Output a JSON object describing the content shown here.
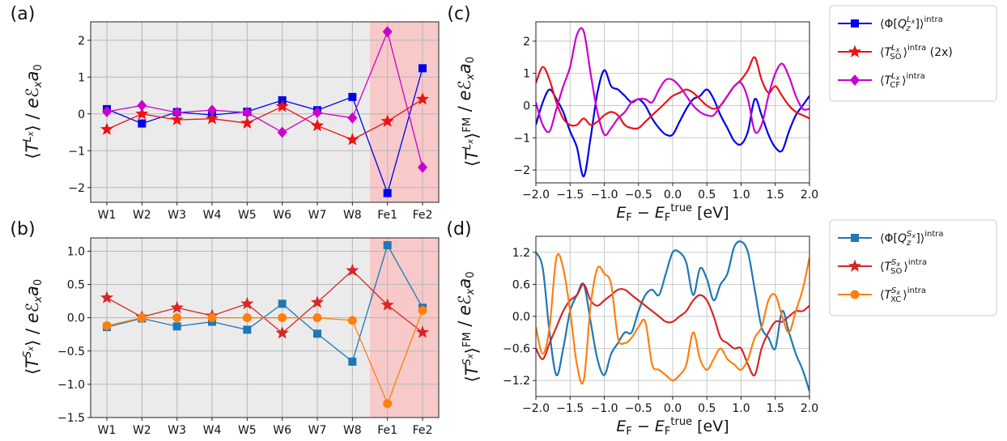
{
  "chart_data": [
    {
      "panel": "(a)",
      "type": "line",
      "categories": [
        "W1",
        "W2",
        "W3",
        "W4",
        "W5",
        "W6",
        "W7",
        "W8",
        "Fe1",
        "Fe2"
      ],
      "ylabel": "⟨T^{Lx}⟩ / eℰx a0",
      "ylim": [
        -2.4,
        2.5
      ],
      "yticks": [
        -2,
        -1,
        0,
        1,
        2
      ],
      "grid": true,
      "background": "#ebebeb",
      "highlight": {
        "from": "Fe1",
        "to": "Fe2",
        "color": "#f7c9c9"
      },
      "series": [
        {
          "color": "#0000ee",
          "marker": "square",
          "values": [
            0.13,
            -0.26,
            0.05,
            -0.03,
            0.06,
            0.37,
            0.1,
            0.46,
            -2.15,
            1.24
          ]
        },
        {
          "color": "#ee1111",
          "marker": "star",
          "values": [
            -0.42,
            0.0,
            -0.16,
            -0.13,
            -0.25,
            0.2,
            -0.32,
            -0.7,
            -0.2,
            0.4
          ]
        },
        {
          "color": "#cc00cc",
          "marker": "diamond",
          "values": [
            0.06,
            0.23,
            0.04,
            0.1,
            0.04,
            -0.5,
            0.04,
            -0.11,
            2.23,
            -1.45
          ]
        }
      ]
    },
    {
      "panel": "(b)",
      "type": "line",
      "categories": [
        "W1",
        "W2",
        "W3",
        "W4",
        "W5",
        "W6",
        "W7",
        "W8",
        "Fe1",
        "Fe2"
      ],
      "ylabel": "⟨T^{Sx}⟩ / eℰx a0",
      "ylim": [
        -1.5,
        1.2
      ],
      "yticks": [
        -1.5,
        -1.0,
        -0.5,
        0.0,
        0.5,
        1.0
      ],
      "ytick_labels": [
        "−1.5",
        "−1.0",
        "−0.5",
        "0.0",
        "0.5",
        "1.0"
      ],
      "grid": true,
      "background": "#ebebeb",
      "highlight": {
        "from": "Fe1",
        "to": "Fe2",
        "color": "#f7c9c9"
      },
      "series": [
        {
          "color": "#1f77b4",
          "marker": "square",
          "values": [
            -0.14,
            -0.01,
            -0.13,
            -0.06,
            -0.18,
            0.21,
            -0.24,
            -0.66,
            1.09,
            0.15
          ]
        },
        {
          "color": "#d62728",
          "marker": "star",
          "values": [
            0.3,
            0.01,
            0.15,
            0.03,
            0.21,
            -0.23,
            0.23,
            0.71,
            0.19,
            -0.22
          ]
        },
        {
          "color": "#ff7f0e",
          "marker": "circle",
          "values": [
            -0.12,
            0.0,
            0.0,
            0.0,
            0.0,
            0.0,
            0.0,
            -0.04,
            -1.29,
            0.11
          ]
        }
      ]
    },
    {
      "panel": "(c)",
      "type": "line",
      "xlabel": "E_F − E_F^true [eV]",
      "ylabel": "⟨T^{Lx}⟩^FM / eℰx a0",
      "xlim": [
        -2.0,
        2.0
      ],
      "ylim": [
        -2.4,
        2.6
      ],
      "xticks": [
        -2.0,
        -1.5,
        -1.0,
        -0.5,
        0.0,
        0.5,
        1.0,
        1.5,
        2.0
      ],
      "xtick_labels": [
        "−2.0",
        "−1.5",
        "−1.0",
        "−0.5",
        "0.0",
        "0.5",
        "1.0",
        "1.5",
        "2.0"
      ],
      "yticks": [
        -2,
        -1,
        0,
        1,
        2
      ],
      "ytick_labels": [
        "−2",
        "−1",
        "0",
        "1",
        "2"
      ],
      "grid": true,
      "x": [
        -2.0,
        -1.9,
        -1.8,
        -1.7,
        -1.6,
        -1.5,
        -1.4,
        -1.3,
        -1.2,
        -1.1,
        -1.0,
        -0.9,
        -0.8,
        -0.7,
        -0.6,
        -0.5,
        -0.4,
        -0.3,
        -0.2,
        -0.1,
        0.0,
        0.1,
        0.2,
        0.3,
        0.4,
        0.5,
        0.6,
        0.7,
        0.8,
        0.9,
        1.0,
        1.1,
        1.2,
        1.3,
        1.4,
        1.5,
        1.6,
        1.7,
        1.8,
        1.9,
        2.0
      ],
      "series": [
        {
          "name": "⟨Φ[Q_z^{Lx}]⟩^intra",
          "color": "#0000ee",
          "marker": "square",
          "values": [
            -0.6,
            0.1,
            0.5,
            0.2,
            -0.2,
            -0.8,
            -1.3,
            -2.2,
            -1.0,
            0.4,
            1.1,
            0.6,
            0.5,
            0.3,
            0.1,
            0.2,
            0.0,
            -0.4,
            -0.7,
            -0.9,
            -0.9,
            -0.5,
            -0.1,
            0.2,
            0.3,
            0.5,
            0.2,
            -0.3,
            -0.7,
            -1.1,
            -1.2,
            -0.8,
            0.2,
            -0.3,
            -0.9,
            -1.3,
            -1.4,
            -0.8,
            -0.3,
            0.0,
            0.3
          ]
        },
        {
          "name": "⟨T_SO^{Lx}⟩^intra",
          "label_suffix": "(2x)",
          "color": "#ee1111",
          "marker": "star",
          "values": [
            0.7,
            1.2,
            0.8,
            0.1,
            -0.4,
            -0.6,
            -0.6,
            -0.4,
            -0.6,
            -0.5,
            -0.3,
            -0.2,
            -0.3,
            -0.6,
            -0.7,
            -0.7,
            -0.5,
            -0.3,
            -0.1,
            0.1,
            0.3,
            0.4,
            0.5,
            0.4,
            0.2,
            0.0,
            -0.1,
            0.0,
            0.3,
            0.6,
            0.8,
            1.1,
            1.5,
            0.8,
            0.4,
            0.6,
            0.3,
            0.0,
            -0.2,
            -0.3,
            -0.4
          ]
        },
        {
          "name": "⟨T_CF^{Lx}⟩^intra",
          "color": "#cc00cc",
          "marker": "diamond",
          "values": [
            0.1,
            -0.6,
            -0.8,
            -0.1,
            0.6,
            1.2,
            2.2,
            2.3,
            1.0,
            -0.2,
            -0.9,
            -0.7,
            -0.4,
            -0.2,
            0.1,
            0.2,
            0.2,
            0.1,
            0.5,
            0.8,
            0.8,
            0.6,
            0.3,
            0.0,
            -0.2,
            -0.3,
            -0.3,
            0.0,
            0.3,
            0.6,
            0.7,
            0.2,
            -0.8,
            -0.6,
            0.3,
            1.0,
            1.3,
            0.9,
            0.3,
            -0.1,
            -0.1
          ]
        }
      ]
    },
    {
      "panel": "(d)",
      "type": "line",
      "xlabel": "E_F − E_F^true [eV]",
      "ylabel": "⟨T^{Sx}⟩^FM / eℰx a0",
      "xlim": [
        -2.0,
        2.0
      ],
      "ylim": [
        -1.5,
        1.5
      ],
      "xticks": [
        -2.0,
        -1.5,
        -1.0,
        -0.5,
        0.0,
        0.5,
        1.0,
        1.5,
        2.0
      ],
      "xtick_labels": [
        "−2.0",
        "−1.5",
        "−1.0",
        "−0.5",
        "0.0",
        "0.5",
        "1.0",
        "1.5",
        "2.0"
      ],
      "yticks": [
        -1.2,
        -0.6,
        0.0,
        0.6,
        1.2
      ],
      "ytick_labels": [
        "−1.2",
        "−0.6",
        "0.0",
        "0.6",
        "1.2"
      ],
      "grid": true,
      "x": [
        -2.0,
        -1.9,
        -1.8,
        -1.7,
        -1.6,
        -1.5,
        -1.4,
        -1.3,
        -1.2,
        -1.1,
        -1.0,
        -0.9,
        -0.8,
        -0.7,
        -0.6,
        -0.5,
        -0.4,
        -0.3,
        -0.2,
        -0.1,
        0.0,
        0.1,
        0.2,
        0.3,
        0.4,
        0.5,
        0.6,
        0.7,
        0.8,
        0.9,
        1.0,
        1.1,
        1.2,
        1.3,
        1.4,
        1.5,
        1.6,
        1.7,
        1.8,
        1.9,
        2.0
      ],
      "series": [
        {
          "name": "⟨Φ[Q_z^{Sx}]⟩^intra",
          "color": "#1f77b4",
          "marker": "square",
          "values": [
            1.2,
            0.9,
            -0.3,
            -1.1,
            -0.6,
            0.1,
            0.4,
            0.6,
            -0.1,
            -0.8,
            -1.1,
            -0.7,
            -0.5,
            -0.3,
            -0.3,
            0.1,
            0.4,
            0.5,
            0.4,
            0.8,
            1.2,
            1.2,
            1.0,
            0.4,
            0.9,
            0.7,
            0.3,
            0.6,
            0.8,
            1.3,
            1.4,
            1.2,
            0.5,
            -0.2,
            -0.4,
            -0.6,
            0.1,
            -0.3,
            -0.7,
            -1.0,
            -1.4
          ]
        },
        {
          "name": "⟨T_SO^{Sx}⟩^intra",
          "color": "#d62728",
          "marker": "star",
          "values": [
            -0.6,
            -0.8,
            -0.5,
            -0.2,
            0.1,
            0.3,
            0.4,
            0.6,
            0.3,
            0.2,
            0.3,
            0.4,
            0.5,
            0.5,
            0.4,
            0.3,
            0.2,
            0.1,
            0.0,
            -0.1,
            -0.1,
            0.0,
            0.1,
            0.3,
            0.4,
            0.3,
            0.0,
            -0.4,
            -0.5,
            -0.6,
            -0.6,
            -0.9,
            -1.1,
            -0.6,
            -0.3,
            -0.1,
            -0.1,
            0.0,
            0.1,
            0.1,
            0.2
          ]
        },
        {
          "name": "⟨T_XC^{Sx}⟩^intra",
          "color": "#ff7f0e",
          "marker": "circle",
          "values": [
            -0.2,
            -0.7,
            -0.2,
            1.1,
            0.9,
            0.1,
            -0.9,
            -1.2,
            0.2,
            0.9,
            0.8,
            0.6,
            -0.4,
            -0.5,
            -0.4,
            -0.2,
            -0.1,
            -0.9,
            -1.0,
            -1.1,
            -1.2,
            -1.1,
            -0.9,
            -0.3,
            -0.8,
            -1.0,
            -0.8,
            -0.6,
            -0.8,
            -0.9,
            -1.0,
            -0.8,
            -0.4,
            -0.2,
            0.3,
            0.4,
            0.0,
            -0.3,
            0.1,
            0.5,
            1.1
          ]
        }
      ]
    }
  ]
}
